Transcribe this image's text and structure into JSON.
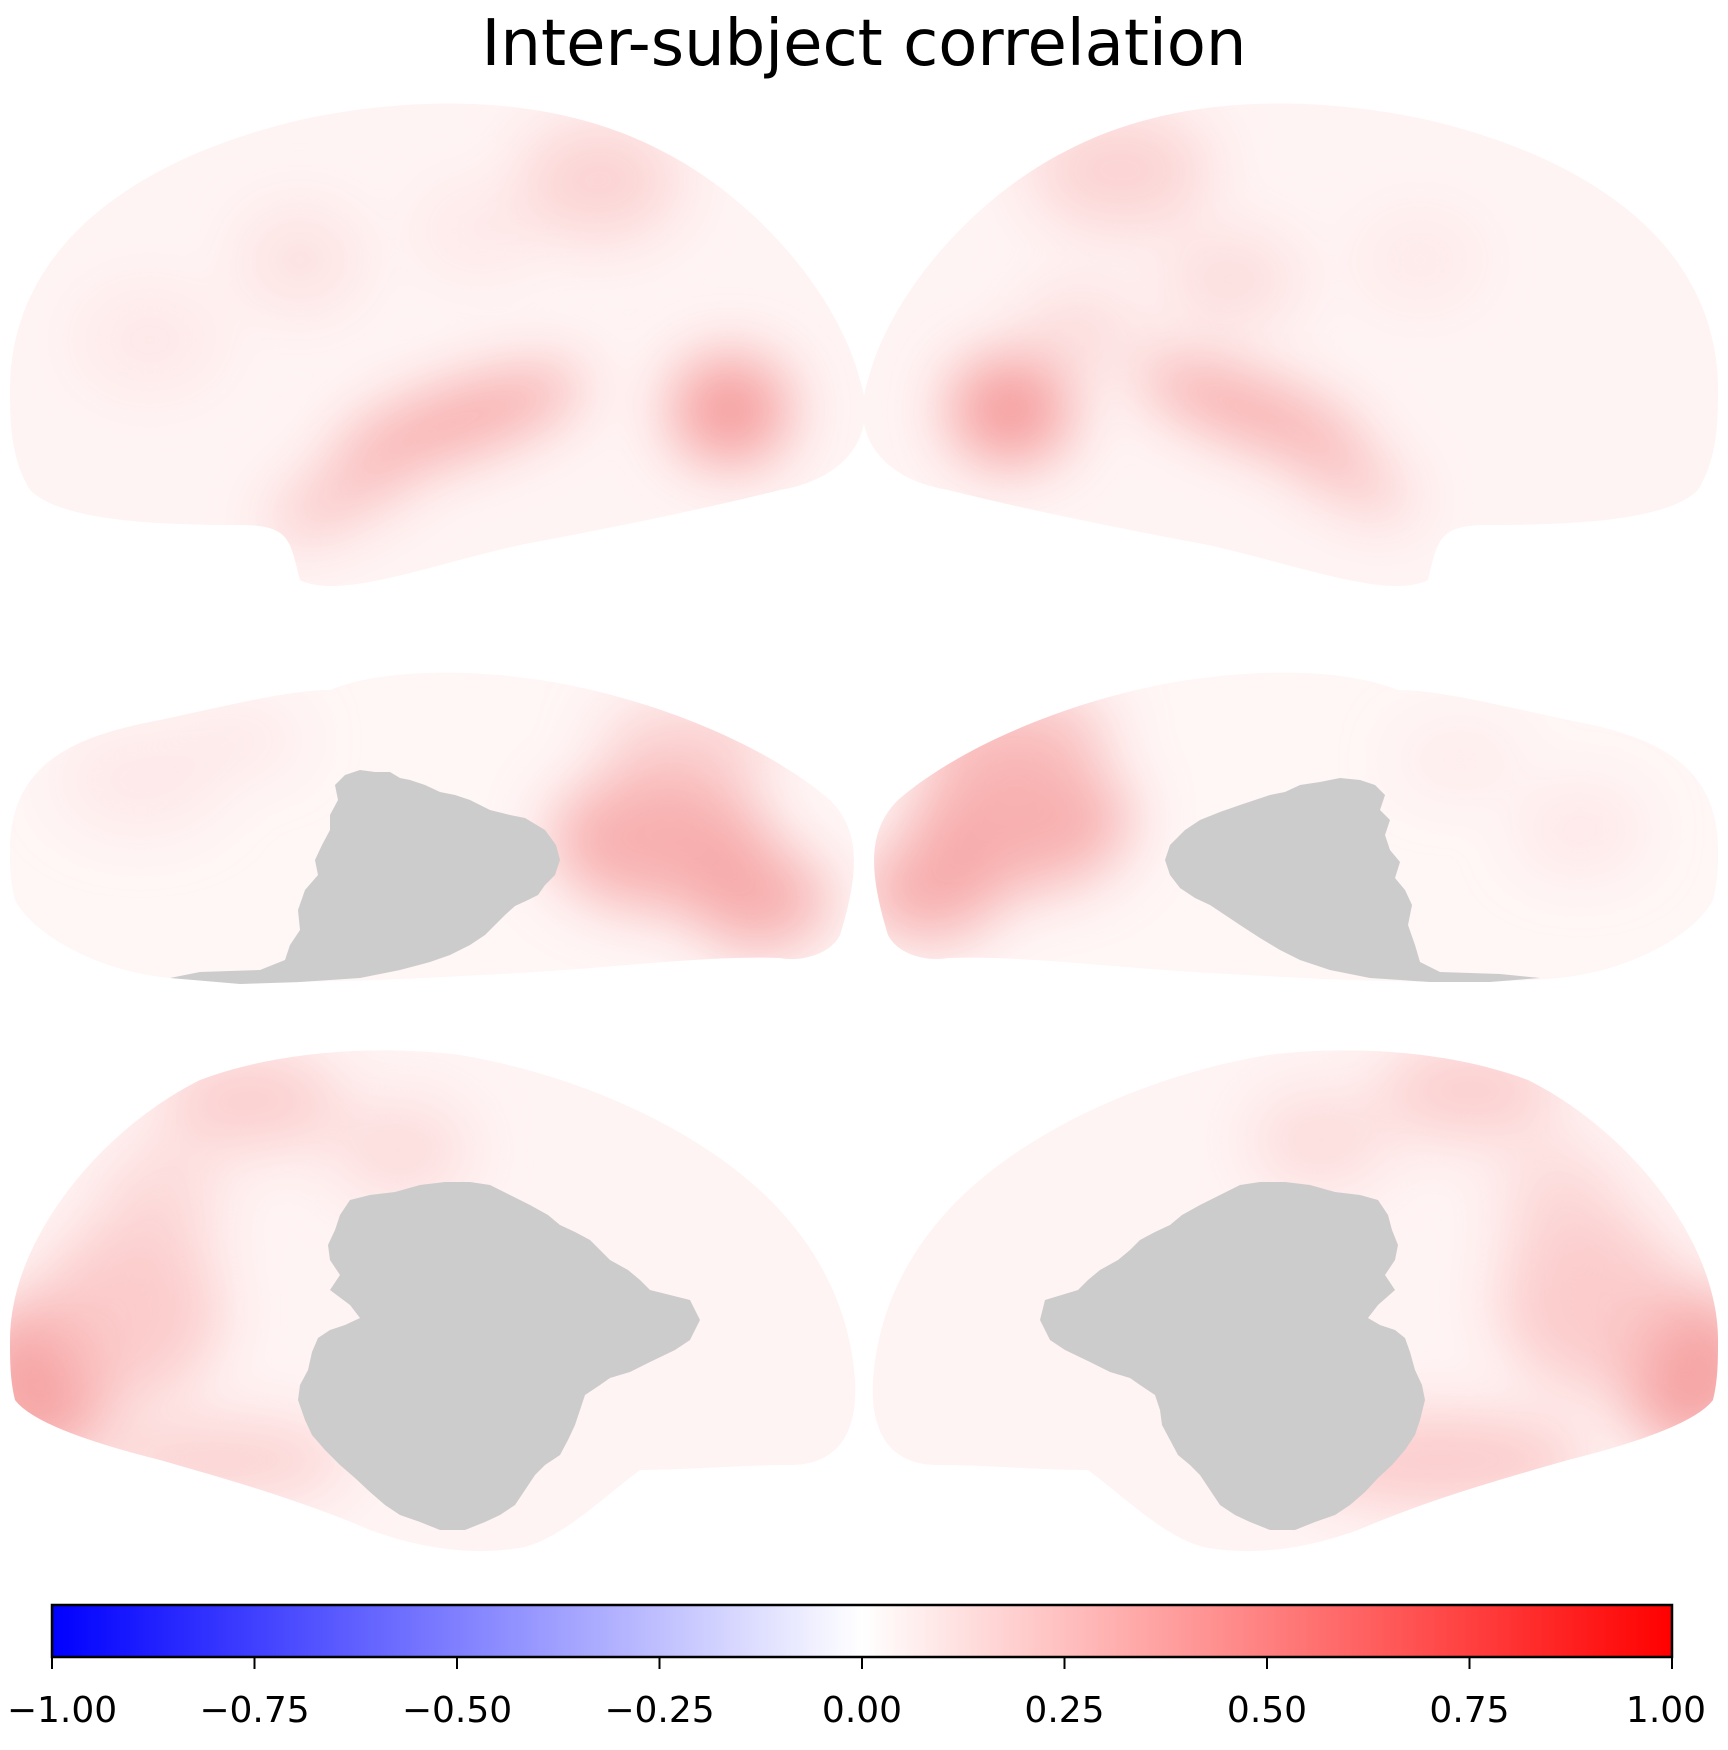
{
  "figure": {
    "title": "Inter-subject correlation"
  },
  "panels": [
    {
      "row": 0,
      "hemisphere": "left",
      "view": "lateral"
    },
    {
      "row": 0,
      "hemisphere": "right",
      "view": "lateral"
    },
    {
      "row": 1,
      "hemisphere": "left",
      "view": "ventral"
    },
    {
      "row": 1,
      "hemisphere": "right",
      "view": "ventral"
    },
    {
      "row": 2,
      "hemisphere": "left",
      "view": "medial"
    },
    {
      "row": 2,
      "hemisphere": "right",
      "view": "medial"
    }
  ],
  "colorbar": {
    "min": -1.0,
    "max": 1.0,
    "colormap": [
      "#0000ff",
      "#ffffff",
      "#ff0000"
    ],
    "ticks": [
      -1.0,
      -0.75,
      -0.5,
      -0.25,
      0.0,
      0.25,
      0.5,
      0.75,
      1.0
    ],
    "tick_labels": [
      "−1.00",
      "−0.75",
      "−0.50",
      "−0.25",
      "0.00",
      "0.25",
      "0.50",
      "0.75",
      "1.00"
    ]
  },
  "colors": {
    "mask_gray": "#cccccc",
    "surface_base": "#fff4f4",
    "hot_spot": "#f58a8a"
  }
}
